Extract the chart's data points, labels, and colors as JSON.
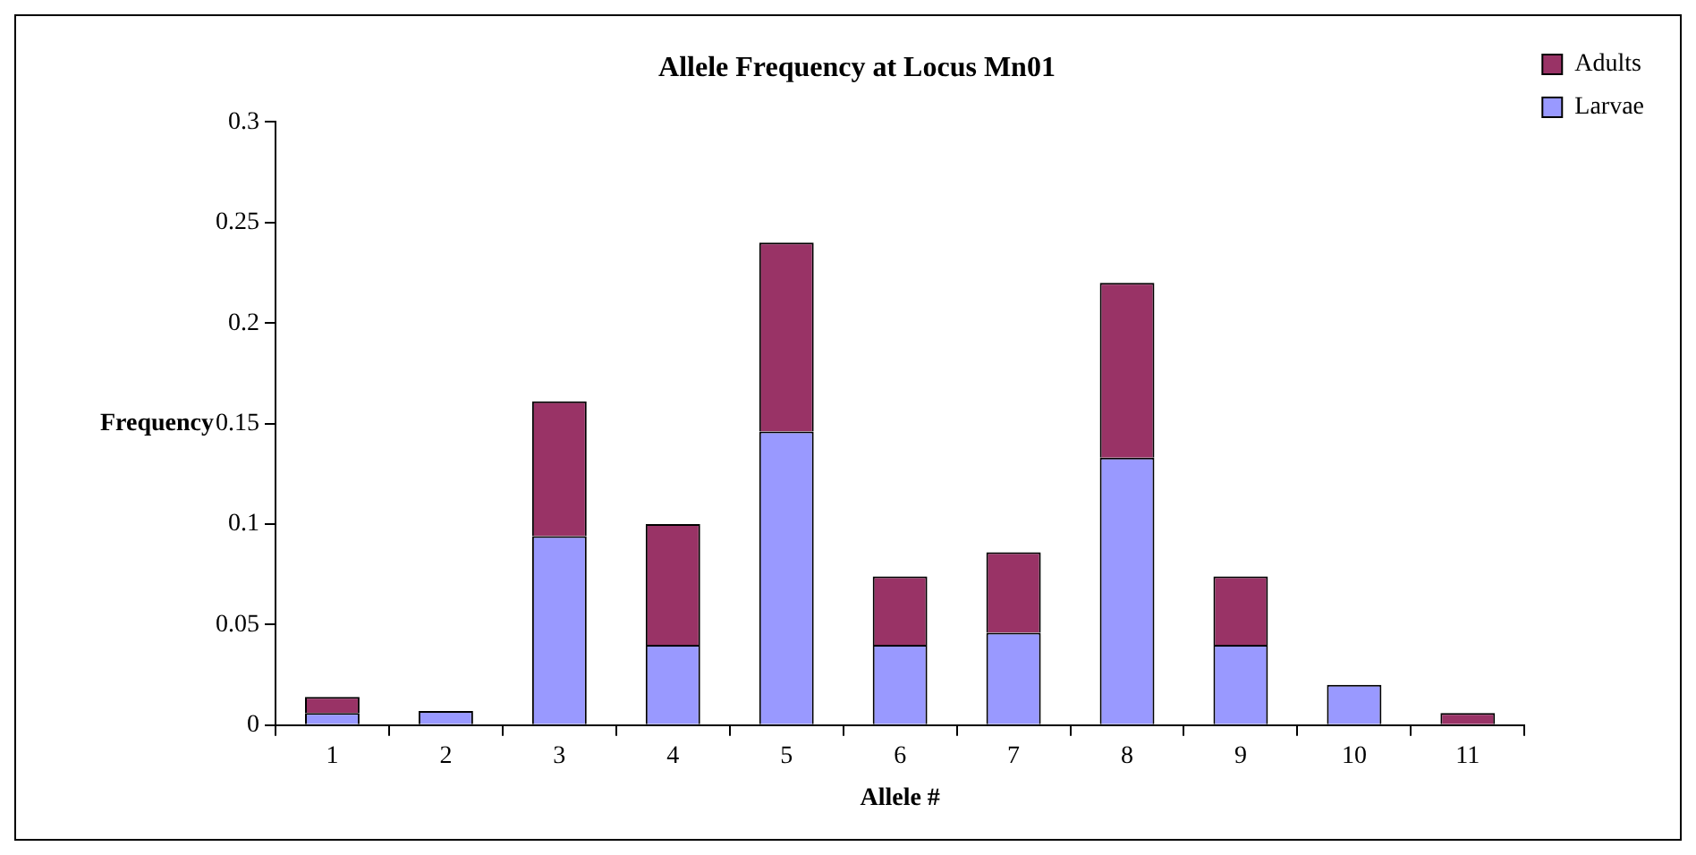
{
  "chart_data": {
    "type": "bar",
    "title": "Allele Frequency at Locus Mn01",
    "xlabel": "Allele #",
    "ylabel": "Frequency",
    "categories": [
      "1",
      "2",
      "3",
      "4",
      "5",
      "6",
      "7",
      "8",
      "9",
      "10",
      "11"
    ],
    "series": [
      {
        "name": "Larvae",
        "color": "#9999ff",
        "values": [
          0.006,
          0.007,
          0.094,
          0.04,
          0.146,
          0.04,
          0.046,
          0.133,
          0.04,
          0.02,
          0
        ]
      },
      {
        "name": "Adults",
        "color": "#993366",
        "values": [
          0.008,
          0,
          0.067,
          0.06,
          0.094,
          0.034,
          0.04,
          0.087,
          0.034,
          0,
          0.006
        ]
      }
    ],
    "stacked": true,
    "ylim": [
      0,
      0.3
    ],
    "yticks": [
      0,
      0.05,
      0.1,
      0.15,
      0.2,
      0.25,
      0.3
    ],
    "grid": false,
    "legend": "top right"
  }
}
